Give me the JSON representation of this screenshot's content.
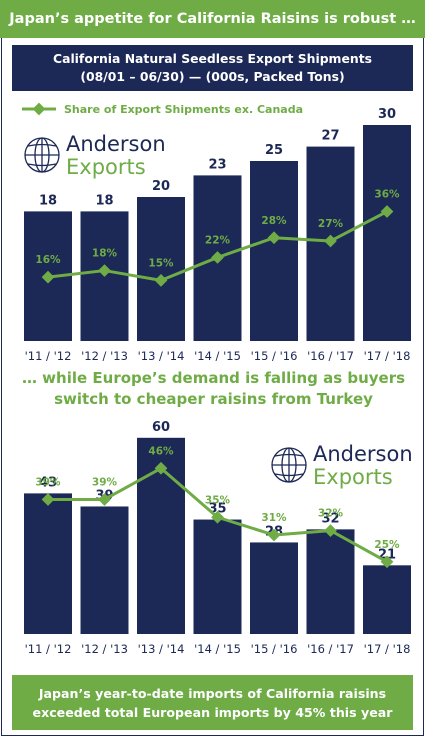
{
  "header": {
    "title": "Japan’s appetite for California Raisins is robust …",
    "subtitle_line1": "California Natural Seedless Export Shipments",
    "subtitle_line2": "(08/01 – 06/30) — (000s, Packed Tons)"
  },
  "mid_title": {
    "line1": "… while Europe’s demand is falling as buyers",
    "line2": "switch to cheaper raisins from Turkey"
  },
  "footer": {
    "line1": "Japan’s year-to-date imports of California raisins",
    "line2": "exceeded total European imports by 45% this year"
  },
  "logo": {
    "word1": "Anderson",
    "word2": "Exports"
  },
  "colors": {
    "bar": "#1c2856",
    "line": "#6fac46",
    "title_bg": "#6fac46",
    "subtitle_bg": "#1c2856"
  },
  "chart_data": [
    {
      "type": "bar",
      "categories": [
        "'11 / '12",
        "'12 / '13",
        "'13 / '14",
        "'14 / '15",
        "'15 / '16",
        "'16 / '17",
        "'17 / '18"
      ],
      "series": [
        {
          "values": [
            18,
            18,
            20,
            23,
            25,
            27,
            30
          ]
        },
        {
          "name": "Share of Export Shipments ex. Canada",
          "type": "line",
          "values": [
            16,
            18,
            15,
            22,
            28,
            27,
            36
          ],
          "labels": [
            "16%",
            "18%",
            "15%",
            "22%",
            "28%",
            "27%",
            "36%"
          ]
        }
      ],
      "legend": "top-left",
      "grid": false
    },
    {
      "type": "bar",
      "categories": [
        "'11 / '12",
        "'12 / '13",
        "'13 / '14",
        "'14 / '15",
        "'15 / '16",
        "'16 / '17",
        "'17 / '18"
      ],
      "series": [
        {
          "values": [
            43,
            39,
            60,
            35,
            28,
            32,
            21
          ]
        },
        {
          "type": "line",
          "values": [
            39,
            39,
            46,
            35,
            31,
            32,
            25
          ],
          "labels": [
            "39%",
            "39%",
            "46%",
            "35%",
            "31%",
            "32%",
            "25%"
          ]
        }
      ],
      "grid": false
    }
  ]
}
